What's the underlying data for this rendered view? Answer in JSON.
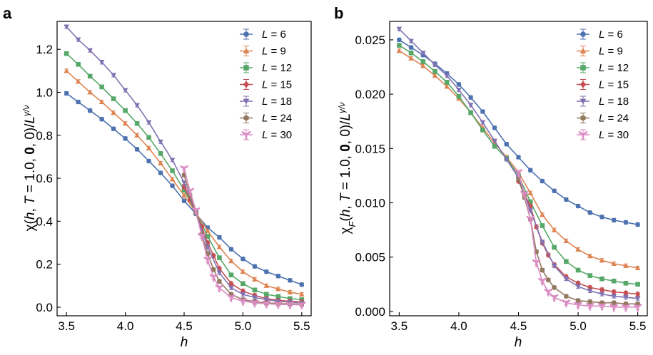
{
  "chart_data": [
    {
      "panel": "a",
      "type": "line",
      "xlabel": "h",
      "ylabel_parts": [
        "χ(",
        "h",
        ", ",
        "T",
        " = 1.0, ",
        "0",
        ", 0)/",
        "L",
        "γ/ν"
      ],
      "xlim": [
        3.42,
        5.58
      ],
      "ylim": [
        -0.04,
        1.33
      ],
      "xticks": [
        "3.5",
        "4.0",
        "4.5",
        "5.0",
        "5.5"
      ],
      "yticks": [
        "0.0",
        "0.2",
        "0.4",
        "0.6",
        "0.8",
        "1.0",
        "1.2"
      ],
      "legend_position": "top-right",
      "series": [
        {
          "name": "L = 6",
          "label_var": "L",
          "label_num": "= 6",
          "marker": "circle",
          "color": "#4c72b0",
          "x": [
            3.5,
            3.6,
            3.7,
            3.8,
            3.9,
            4.0,
            4.1,
            4.2,
            4.3,
            4.4,
            4.5,
            4.6,
            4.7,
            4.8,
            4.9,
            5.0,
            5.1,
            5.2,
            5.3,
            5.4,
            5.5
          ],
          "y": [
            0.995,
            0.955,
            0.915,
            0.875,
            0.83,
            0.785,
            0.735,
            0.68,
            0.625,
            0.565,
            0.495,
            0.435,
            0.37,
            0.325,
            0.27,
            0.225,
            0.19,
            0.165,
            0.145,
            0.125,
            0.105
          ]
        },
        {
          "name": "L = 9",
          "label_var": "L",
          "label_num": "= 9",
          "marker": "triangle-up",
          "color": "#dd8452",
          "x": [
            3.5,
            3.6,
            3.7,
            3.8,
            3.9,
            4.0,
            4.1,
            4.2,
            4.3,
            4.4,
            4.5,
            4.6,
            4.7,
            4.8,
            4.9,
            5.0,
            5.1,
            5.2,
            5.3,
            5.4,
            5.5
          ],
          "y": [
            1.1,
            1.05,
            1.0,
            0.955,
            0.905,
            0.855,
            0.8,
            0.74,
            0.67,
            0.595,
            0.52,
            0.44,
            0.355,
            0.28,
            0.215,
            0.165,
            0.13,
            0.1,
            0.085,
            0.07,
            0.06
          ]
        },
        {
          "name": "L = 12",
          "label_var": "L",
          "label_num": "= 12",
          "marker": "square",
          "color": "#55a868",
          "x": [
            3.5,
            3.6,
            3.7,
            3.8,
            3.9,
            4.0,
            4.1,
            4.2,
            4.3,
            4.4,
            4.5,
            4.6,
            4.7,
            4.8,
            4.9,
            5.0,
            5.1,
            5.2,
            5.3,
            5.4,
            5.5
          ],
          "y": [
            1.18,
            1.13,
            1.075,
            1.025,
            0.97,
            0.915,
            0.855,
            0.79,
            0.715,
            0.635,
            0.545,
            0.44,
            0.33,
            0.23,
            0.15,
            0.11,
            0.08,
            0.06,
            0.05,
            0.04,
            0.035
          ]
        },
        {
          "name": "L = 15",
          "label_var": "L",
          "label_num": "= 15",
          "marker": "diamond",
          "color": "#c44e52",
          "x": [
            4.5,
            4.55,
            4.6,
            4.65,
            4.7,
            4.75,
            4.8,
            4.9,
            5.0,
            5.1,
            5.2,
            5.3,
            5.4,
            5.5
          ],
          "y": [
            0.56,
            0.5,
            0.44,
            0.375,
            0.3,
            0.24,
            0.18,
            0.11,
            0.075,
            0.055,
            0.04,
            0.032,
            0.028,
            0.025
          ]
        },
        {
          "name": "L = 18",
          "label_var": "L",
          "label_num": "= 18",
          "marker": "triangle-down",
          "color": "#8172b3",
          "x": [
            3.5,
            3.6,
            3.7,
            3.8,
            3.9,
            4.0,
            4.1,
            4.2,
            4.3,
            4.4,
            4.5,
            4.6,
            4.7,
            4.8,
            4.9,
            5.0,
            5.1,
            5.2,
            5.3,
            5.4,
            5.5
          ],
          "y": [
            1.305,
            1.245,
            1.195,
            1.14,
            1.08,
            1.01,
            0.94,
            0.86,
            0.77,
            0.685,
            0.58,
            0.44,
            0.28,
            0.16,
            0.09,
            0.06,
            0.045,
            0.035,
            0.028,
            0.023,
            0.02
          ]
        },
        {
          "name": "L = 24",
          "label_var": "L",
          "label_num": "= 24",
          "marker": "hexagon",
          "color": "#937860",
          "x": [
            4.5,
            4.55,
            4.6,
            4.65,
            4.7,
            4.75,
            4.8,
            4.9,
            5.0,
            5.1,
            5.2,
            5.3,
            5.4,
            5.5
          ],
          "y": [
            0.615,
            0.52,
            0.44,
            0.34,
            0.25,
            0.175,
            0.12,
            0.06,
            0.035,
            0.025,
            0.02,
            0.017,
            0.015,
            0.014
          ]
        },
        {
          "name": "L = 30",
          "label_var": "L",
          "label_num": "= 30",
          "marker": "tri-down",
          "color": "#da8bc3",
          "x": [
            4.5,
            4.55,
            4.6,
            4.65,
            4.7,
            4.75,
            4.8,
            4.9,
            5.0,
            5.1,
            5.2,
            5.3,
            5.4,
            5.5
          ],
          "y": [
            0.645,
            0.54,
            0.45,
            0.33,
            0.22,
            0.14,
            0.09,
            0.045,
            0.028,
            0.02,
            0.016,
            0.013,
            0.012,
            0.011
          ]
        }
      ]
    },
    {
      "panel": "b",
      "type": "line",
      "xlabel": "h",
      "ylabel_parts": [
        "χ",
        "F",
        "(",
        "h",
        ", ",
        "T",
        " = 1.0, ",
        "0",
        ", 0)/",
        "L",
        "γ/ν"
      ],
      "xlim": [
        3.42,
        5.58
      ],
      "ylim": [
        -0.0004,
        0.0267
      ],
      "xticks": [
        "3.5",
        "4.0",
        "4.5",
        "5.0",
        "5.5"
      ],
      "yticks": [
        "0.000",
        "0.005",
        "0.010",
        "0.015",
        "0.020",
        "0.025"
      ],
      "legend_position": "top-right",
      "series": [
        {
          "name": "L = 6",
          "label_var": "L",
          "label_num": "= 6",
          "marker": "circle",
          "color": "#4c72b0",
          "x": [
            3.5,
            3.6,
            3.7,
            3.8,
            3.9,
            4.0,
            4.1,
            4.2,
            4.3,
            4.4,
            4.5,
            4.6,
            4.7,
            4.8,
            4.9,
            5.0,
            5.1,
            5.2,
            5.3,
            5.4,
            5.5
          ],
          "y": [
            0.025,
            0.0243,
            0.0236,
            0.0228,
            0.0219,
            0.0209,
            0.0197,
            0.0184,
            0.0169,
            0.0154,
            0.0142,
            0.013,
            0.012,
            0.0111,
            0.0103,
            0.0097,
            0.0091,
            0.0087,
            0.0084,
            0.0082,
            0.008
          ]
        },
        {
          "name": "L = 9",
          "label_var": "L",
          "label_num": "= 9",
          "marker": "triangle-up",
          "color": "#dd8452",
          "x": [
            3.5,
            3.6,
            3.7,
            3.8,
            3.9,
            4.0,
            4.1,
            4.2,
            4.3,
            4.4,
            4.5,
            4.6,
            4.7,
            4.8,
            4.9,
            5.0,
            5.1,
            5.2,
            5.3,
            5.4,
            5.5
          ],
          "y": [
            0.024,
            0.0233,
            0.0226,
            0.0217,
            0.0207,
            0.0196,
            0.0183,
            0.0169,
            0.0155,
            0.0142,
            0.0128,
            0.0109,
            0.0089,
            0.0075,
            0.0065,
            0.0057,
            0.0051,
            0.0047,
            0.0044,
            0.0042,
            0.004
          ]
        },
        {
          "name": "L = 12",
          "label_var": "L",
          "label_num": "= 12",
          "marker": "square",
          "color": "#55a868",
          "x": [
            3.5,
            3.6,
            3.7,
            3.8,
            3.9,
            4.0,
            4.1,
            4.2,
            4.3,
            4.4,
            4.5,
            4.6,
            4.7,
            4.8,
            4.9,
            5.0,
            5.1,
            5.2,
            5.3,
            5.4,
            5.5
          ],
          "y": [
            0.0245,
            0.0238,
            0.023,
            0.0221,
            0.0211,
            0.0198,
            0.0183,
            0.0167,
            0.0152,
            0.0141,
            0.0125,
            0.0101,
            0.0079,
            0.0059,
            0.0046,
            0.0038,
            0.0033,
            0.003,
            0.0028,
            0.0026,
            0.0025
          ]
        },
        {
          "name": "L = 15",
          "label_var": "L",
          "label_num": "= 15",
          "marker": "diamond",
          "color": "#c44e52",
          "x": [
            4.5,
            4.55,
            4.6,
            4.65,
            4.7,
            4.75,
            4.8,
            4.9,
            5.0,
            5.1,
            5.2,
            5.3,
            5.4,
            5.5
          ],
          "y": [
            0.012,
            0.0108,
            0.0097,
            0.0078,
            0.0063,
            0.0052,
            0.0043,
            0.0032,
            0.0026,
            0.0022,
            0.002,
            0.0018,
            0.0017,
            0.0016
          ]
        },
        {
          "name": "L = 18",
          "label_var": "L",
          "label_num": "= 18",
          "marker": "triangle-down",
          "color": "#8172b3",
          "x": [
            3.5,
            3.6,
            3.7,
            3.8,
            3.9,
            4.0,
            4.1,
            4.2,
            4.3,
            4.4,
            4.5,
            4.6,
            4.7,
            4.8,
            4.9,
            5.0,
            5.1,
            5.2,
            5.3,
            5.4,
            5.5
          ],
          "y": [
            0.026,
            0.0249,
            0.0238,
            0.0227,
            0.0217,
            0.0204,
            0.019,
            0.0174,
            0.0157,
            0.014,
            0.0123,
            0.0093,
            0.0064,
            0.0042,
            0.003,
            0.0023,
            0.0019,
            0.0016,
            0.0014,
            0.0013,
            0.0012
          ]
        },
        {
          "name": "L = 24",
          "label_var": "L",
          "label_num": "= 24",
          "marker": "hexagon",
          "color": "#937860",
          "x": [
            4.5,
            4.55,
            4.6,
            4.65,
            4.7,
            4.75,
            4.8,
            4.9,
            5.0,
            5.1,
            5.2,
            5.3,
            5.4,
            5.5
          ],
          "y": [
            0.0122,
            0.0105,
            0.0085,
            0.0055,
            0.0038,
            0.0029,
            0.0022,
            0.0014,
            0.001,
            0.0009,
            0.0008,
            0.0008,
            0.0007,
            0.0007
          ]
        },
        {
          "name": "L = 30",
          "label_var": "L",
          "label_num": "= 30",
          "marker": "tri-down",
          "color": "#da8bc3",
          "x": [
            4.5,
            4.55,
            4.6,
            4.65,
            4.7,
            4.75,
            4.8,
            4.9,
            5.0,
            5.1,
            5.2,
            5.3,
            5.4,
            5.5
          ],
          "y": [
            0.0128,
            0.0108,
            0.0085,
            0.0045,
            0.0028,
            0.0018,
            0.0013,
            0.0008,
            0.0006,
            0.0005,
            0.0005,
            0.0004,
            0.0004,
            0.0004
          ]
        }
      ]
    }
  ]
}
